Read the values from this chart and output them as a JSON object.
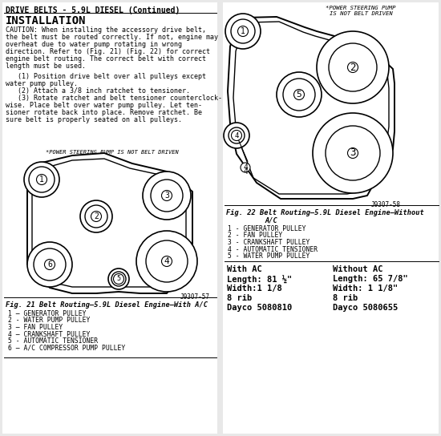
{
  "title": "DRIVE BELTS - 5.9L DIESEL (Continued)",
  "bg_color": "#e8e8e8",
  "left_panel": {
    "install_title": "INSTALLATION",
    "caution_lines": [
      "CAUTION: When installing the accessory drive belt,",
      "the belt must be routed correctly. If not, engine may",
      "overheat due to water pump rotating in wrong",
      "direction. Refer to (Fig. 21) (Fig. 22) for correct",
      "engine belt routing. The correct belt with correct",
      "length must be used."
    ],
    "step_lines": [
      "   (1) Position drive belt over all pulleys except",
      "water pump pulley.",
      "   (2) Attach a 3/8 inch ratchet to tensioner.",
      "   (3) Rotate ratchet and belt tensioner counterclock-",
      "wise. Place belt over water pump pulley. Let ten-",
      "sioner rotate back into place. Remove ratchet. Be",
      "sure belt is properly seated on all pulleys."
    ],
    "diag_note": "*POWER STEERING PUMP IS NOT BELT DRIVEN",
    "fig_label": "Fig. 21 Belt Routing—5.9L Diesel Engine—With A/C",
    "fig_ref": "J9307-57",
    "legend": [
      "1 – GENERATOR PULLEY",
      "2 - WATER PUMP PULLEY",
      "3 – FAN PULLEY",
      "4 – CRANKSHAFT PULLEY",
      "5 - AUTOMATIC TENSIONER",
      "6 – A/C COMPRESSOR PUMP PULLEY"
    ]
  },
  "right_panel": {
    "diag_note_line1": "*POWER STEERING PUMP",
    "diag_note_line2": "IS NOT BELT DRIVEN",
    "fig_label": "Fig. 22 Belt Routing—5.9L Diesel Engine—Without",
    "fig_label2": "A/C",
    "fig_ref": "J9307-58",
    "legend": [
      "1 - GENERATOR PULLEY",
      "2 - FAN PULLEY",
      "3 - CRANKSHAFT PULLEY",
      "4 - AUTOMATIC TENSIONER",
      "5 - WATER PUMP PULLEY"
    ],
    "with_ac_title": "With AC",
    "with_ac_lines": [
      "Length: 81 ½\"",
      "Width:1 1/8",
      "8 rib",
      "Dayco 5080810"
    ],
    "without_ac_title": "Without AC",
    "without_ac_lines": [
      "Length: 65 7/8\"",
      "Width: 1 1/8\"",
      "8 rib",
      "Dayco 5080655"
    ]
  }
}
